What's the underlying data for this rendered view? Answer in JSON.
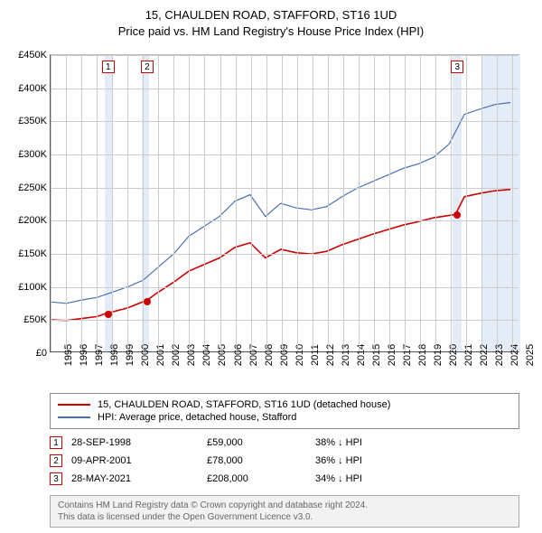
{
  "title_line1": "15, CHAULDEN ROAD, STAFFORD, ST16 1UD",
  "title_line2": "Price paid vs. HM Land Registry's House Price Index (HPI)",
  "chart": {
    "type": "line",
    "x_min_year": 1995,
    "x_max_year": 2025.5,
    "y_min": 0,
    "y_max": 450000,
    "y_tick_step": 50000,
    "y_prefix": "£",
    "y_tick_labels": [
      "£0",
      "£50K",
      "£100K",
      "£150K",
      "£200K",
      "£250K",
      "£300K",
      "£350K",
      "£400K",
      "£450K"
    ],
    "x_ticks": [
      1995,
      1996,
      1997,
      1998,
      1999,
      2000,
      2001,
      2002,
      2003,
      2004,
      2005,
      2006,
      2007,
      2008,
      2009,
      2010,
      2011,
      2012,
      2013,
      2014,
      2015,
      2016,
      2017,
      2018,
      2019,
      2020,
      2021,
      2022,
      2023,
      2024,
      2025
    ],
    "background_bands": [
      {
        "from": 1998.5,
        "to": 1999.0
      },
      {
        "from": 2000.9,
        "to": 2001.4
      },
      {
        "from": 2021.1,
        "to": 2021.7
      },
      {
        "from": 2023.0,
        "to": 2025.5
      }
    ],
    "grid_color": "#cccccc",
    "band_color": "#e3ecf7",
    "series": [
      {
        "name": "hpi",
        "label": "HPI: Average price, detached house, Stafford",
        "color": "#4a6fb0",
        "width": 1.2,
        "points": [
          [
            1995,
            75000
          ],
          [
            1996,
            73000
          ],
          [
            1997,
            78000
          ],
          [
            1998,
            82000
          ],
          [
            1999,
            90000
          ],
          [
            2000,
            98000
          ],
          [
            2001,
            108000
          ],
          [
            2002,
            128000
          ],
          [
            2003,
            148000
          ],
          [
            2004,
            175000
          ],
          [
            2005,
            190000
          ],
          [
            2006,
            205000
          ],
          [
            2007,
            228000
          ],
          [
            2008,
            238000
          ],
          [
            2009,
            205000
          ],
          [
            2010,
            225000
          ],
          [
            2011,
            218000
          ],
          [
            2012,
            215000
          ],
          [
            2013,
            220000
          ],
          [
            2014,
            235000
          ],
          [
            2015,
            248000
          ],
          [
            2016,
            258000
          ],
          [
            2017,
            268000
          ],
          [
            2018,
            278000
          ],
          [
            2019,
            285000
          ],
          [
            2020,
            295000
          ],
          [
            2021,
            315000
          ],
          [
            2022,
            360000
          ],
          [
            2023,
            368000
          ],
          [
            2024,
            375000
          ],
          [
            2025,
            378000
          ]
        ]
      },
      {
        "name": "property",
        "label": "15, CHAULDEN ROAD, STAFFORD, ST16 1UD (detached house)",
        "color": "#cc0000",
        "width": 1.6,
        "points": [
          [
            1995,
            48000
          ],
          [
            1996,
            47000
          ],
          [
            1997,
            50000
          ],
          [
            1998,
            53000
          ],
          [
            1998.74,
            59000
          ],
          [
            1999,
            60000
          ],
          [
            2000,
            66000
          ],
          [
            2001.27,
            78000
          ],
          [
            2002,
            90000
          ],
          [
            2003,
            105000
          ],
          [
            2004,
            122000
          ],
          [
            2005,
            132000
          ],
          [
            2006,
            142000
          ],
          [
            2007,
            158000
          ],
          [
            2008,
            165000
          ],
          [
            2009,
            142000
          ],
          [
            2010,
            155000
          ],
          [
            2011,
            150000
          ],
          [
            2012,
            148000
          ],
          [
            2013,
            152000
          ],
          [
            2014,
            162000
          ],
          [
            2015,
            170000
          ],
          [
            2016,
            178000
          ],
          [
            2017,
            185000
          ],
          [
            2018,
            192000
          ],
          [
            2019,
            197000
          ],
          [
            2020,
            203000
          ],
          [
            2021.41,
            208000
          ],
          [
            2022,
            235000
          ],
          [
            2023,
            240000
          ],
          [
            2024,
            244000
          ],
          [
            2025,
            246000
          ]
        ]
      }
    ],
    "sale_markers": [
      {
        "n": "1",
        "year": 1998.74,
        "price": 59000,
        "date_label": "28-SEP-1998",
        "price_label": "£59,000",
        "delta_label": "38% ↓ HPI"
      },
      {
        "n": "2",
        "year": 2001.27,
        "price": 78000,
        "date_label": "09-APR-2001",
        "price_label": "£78,000",
        "delta_label": "36% ↓ HPI"
      },
      {
        "n": "3",
        "year": 2021.41,
        "price": 208000,
        "date_label": "28-MAY-2021",
        "price_label": "£208,000",
        "delta_label": "34% ↓ HPI"
      }
    ]
  },
  "legend": {
    "series1_label": "15, CHAULDEN ROAD, STAFFORD, ST16 1UD (detached house)",
    "series1_color": "#cc0000",
    "series2_label": "HPI: Average price, detached house, Stafford",
    "series2_color": "#4a6fb0"
  },
  "footer_line1": "Contains HM Land Registry data © Crown copyright and database right 2024.",
  "footer_line2": "This data is licensed under the Open Government Licence v3.0."
}
